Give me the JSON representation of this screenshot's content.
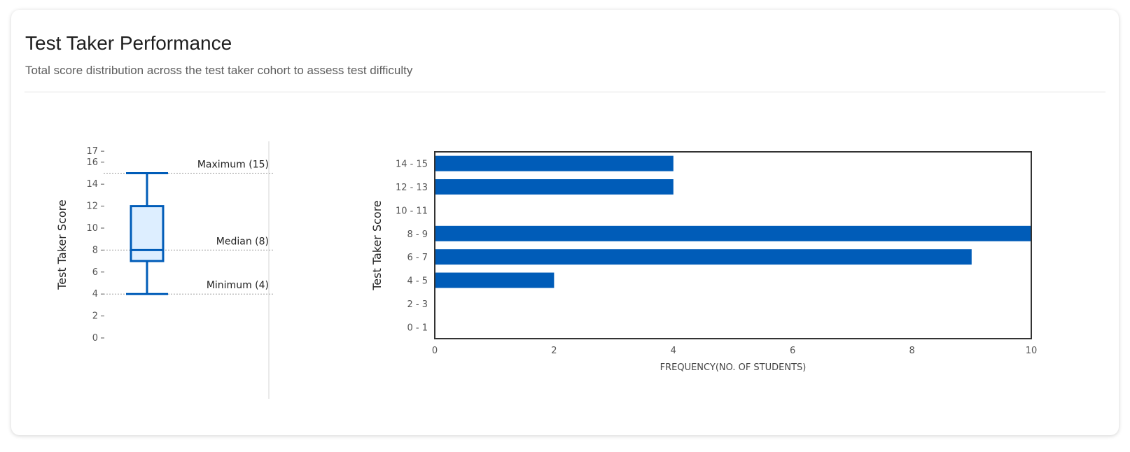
{
  "header": {
    "title": "Test Taker Performance",
    "subtitle": "Total score distribution across the test taker cohort to assess test difficulty"
  },
  "colors": {
    "bar": "#005cb8",
    "box_fill": "#ddeeff",
    "box_stroke": "#005cb8",
    "frame": "#333333"
  },
  "chart_data": [
    {
      "type": "box",
      "ylabel": "Test Taker Score",
      "ylim": [
        0,
        17
      ],
      "yticks": [
        0,
        2,
        4,
        6,
        8,
        10,
        12,
        14,
        16,
        17
      ],
      "stats": {
        "min": 4,
        "q1": 7,
        "median": 8,
        "q3": 12,
        "max": 15
      },
      "annotations": [
        {
          "label": "Maximum (15)",
          "value": 15
        },
        {
          "label": "Median (8)",
          "value": 8
        },
        {
          "label": "Minimum (4)",
          "value": 4
        }
      ]
    },
    {
      "type": "bar",
      "orientation": "horizontal",
      "categories": [
        "14 - 15",
        "12 - 13",
        "10 - 11",
        "8 - 9",
        "6 - 7",
        "4 - 5",
        "2 - 3",
        "0 - 1"
      ],
      "values": [
        4,
        4,
        0,
        10,
        9,
        2,
        0,
        0
      ],
      "xlabel": "FREQUENCY(NO. OF STUDENTS)",
      "ylabel": "Test Taker Score",
      "xlim": [
        0,
        10
      ],
      "xticks": [
        0,
        2,
        4,
        6,
        8,
        10
      ]
    }
  ]
}
